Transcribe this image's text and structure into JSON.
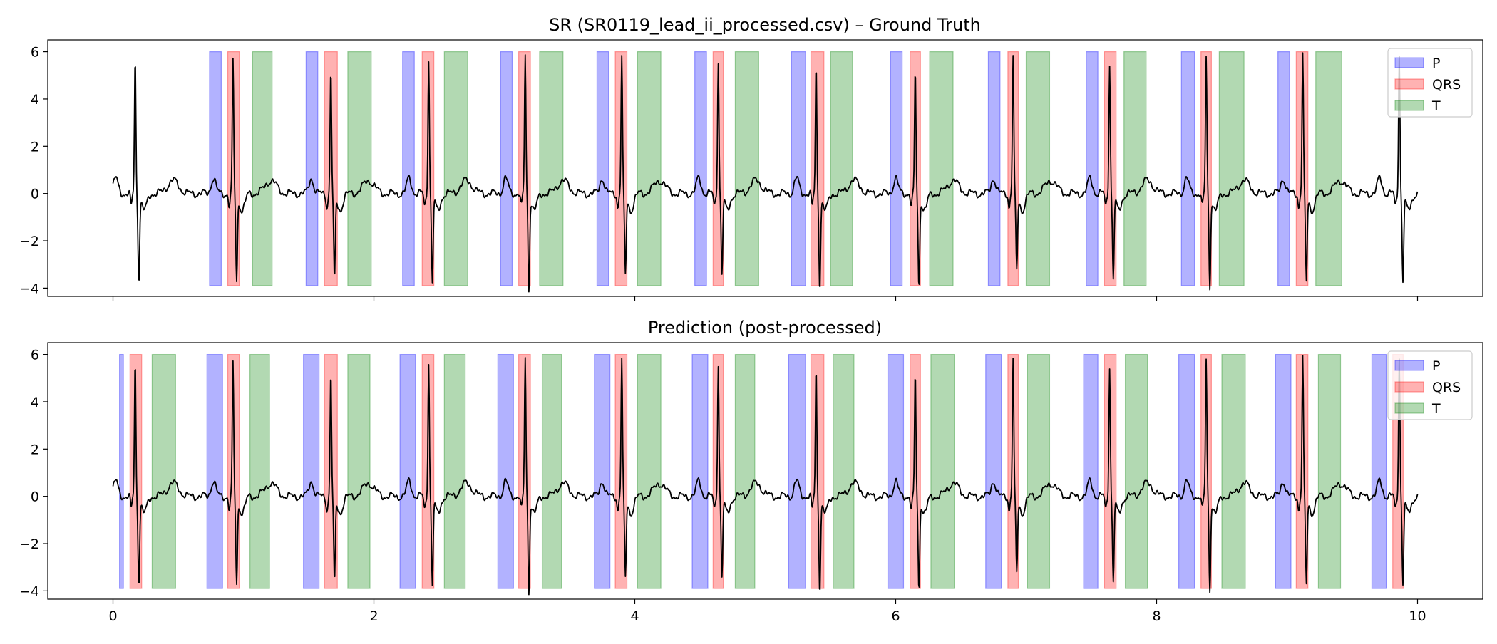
{
  "chart_data": [
    {
      "type": "line",
      "title": "SR (SR0119_lead_ii_processed.csv) – Ground Truth",
      "xlim": [
        -0.5,
        10.5
      ],
      "ylim": [
        -4.35,
        6.5
      ],
      "xticks": [
        0,
        2,
        4,
        6,
        8,
        10
      ],
      "yticks": [
        -4,
        -2,
        0,
        2,
        4,
        6
      ],
      "x_tick_labels_shown": false,
      "grid": false,
      "legend": {
        "placement": "top-right",
        "entries": [
          {
            "label": "P",
            "color": "#0000ff"
          },
          {
            "label": "QRS",
            "color": "#ff0000"
          },
          {
            "label": "T",
            "color": "#008000"
          }
        ]
      },
      "band_y_range": [
        -3.9,
        6.0
      ],
      "regions": {
        "P": [
          [
            0.74,
            0.83
          ],
          [
            1.48,
            1.57
          ],
          [
            2.22,
            2.31
          ],
          [
            2.97,
            3.06
          ],
          [
            3.71,
            3.8
          ],
          [
            4.46,
            4.55
          ],
          [
            5.2,
            5.31
          ],
          [
            5.96,
            6.05
          ],
          [
            6.71,
            6.8
          ],
          [
            7.46,
            7.55
          ],
          [
            8.19,
            8.29
          ],
          [
            8.93,
            9.02
          ]
        ],
        "QRS": [
          [
            0.88,
            0.97
          ],
          [
            1.62,
            1.72
          ],
          [
            2.37,
            2.46
          ],
          [
            3.11,
            3.2
          ],
          [
            3.85,
            3.94
          ],
          [
            4.6,
            4.68
          ],
          [
            5.35,
            5.45
          ],
          [
            6.11,
            6.19
          ],
          [
            6.86,
            6.94
          ],
          [
            7.6,
            7.69
          ],
          [
            8.34,
            8.42
          ],
          [
            9.07,
            9.16
          ]
        ],
        "T": [
          [
            1.07,
            1.22
          ],
          [
            1.8,
            1.98
          ],
          [
            2.54,
            2.72
          ],
          [
            3.27,
            3.45
          ],
          [
            4.02,
            4.2
          ],
          [
            4.77,
            4.95
          ],
          [
            5.5,
            5.67
          ],
          [
            6.26,
            6.44
          ],
          [
            7.0,
            7.18
          ],
          [
            7.75,
            7.92
          ],
          [
            8.48,
            8.67
          ],
          [
            9.22,
            9.42
          ]
        ]
      },
      "signal": {
        "name": "ECG lead II",
        "color": "#000000",
        "x_range": [
          0,
          10
        ],
        "qrs_peaks": [
          0.17,
          0.92,
          1.67,
          2.42,
          3.16,
          3.9,
          4.64,
          5.39,
          6.15,
          6.9,
          7.64,
          8.38,
          9.12,
          9.86
        ],
        "r_amplitudes": [
          5.7,
          5.6,
          5.3,
          5.7,
          5.9,
          5.8,
          5.6,
          5.4,
          5.2,
          5.8,
          5.5,
          5.8,
          5.9,
          5.9
        ],
        "s_amplitudes": [
          -3.6,
          -3.6,
          -3.6,
          -3.7,
          -3.9,
          -3.4,
          -3.3,
          -3.9,
          -3.9,
          -3.2,
          -3.5,
          -3.8,
          -3.7,
          -3.6
        ]
      }
    },
    {
      "type": "line",
      "title": "Prediction (post-processed)",
      "xlim": [
        -0.5,
        10.5
      ],
      "ylim": [
        -4.35,
        6.5
      ],
      "xticks": [
        0,
        2,
        4,
        6,
        8,
        10
      ],
      "yticks": [
        -4,
        -2,
        0,
        2,
        4,
        6
      ],
      "x_tick_labels_shown": true,
      "grid": false,
      "legend": {
        "placement": "top-right",
        "entries": [
          {
            "label": "P",
            "color": "#0000ff"
          },
          {
            "label": "QRS",
            "color": "#ff0000"
          },
          {
            "label": "T",
            "color": "#008000"
          }
        ]
      },
      "band_y_range": [
        -3.9,
        6.0
      ],
      "regions": {
        "P": [
          [
            0.05,
            0.08
          ],
          [
            0.72,
            0.84
          ],
          [
            1.46,
            1.58
          ],
          [
            2.2,
            2.32
          ],
          [
            2.95,
            3.07
          ],
          [
            3.69,
            3.81
          ],
          [
            4.44,
            4.56
          ],
          [
            5.18,
            5.31
          ],
          [
            5.94,
            6.06
          ],
          [
            6.69,
            6.81
          ],
          [
            7.44,
            7.55
          ],
          [
            8.17,
            8.29
          ],
          [
            8.91,
            9.03
          ],
          [
            9.65,
            9.76
          ]
        ],
        "QRS": [
          [
            0.13,
            0.22
          ],
          [
            0.88,
            0.97
          ],
          [
            1.62,
            1.72
          ],
          [
            2.37,
            2.46
          ],
          [
            3.11,
            3.2
          ],
          [
            3.85,
            3.94
          ],
          [
            4.6,
            4.68
          ],
          [
            5.35,
            5.45
          ],
          [
            6.11,
            6.19
          ],
          [
            6.86,
            6.94
          ],
          [
            7.6,
            7.69
          ],
          [
            8.34,
            8.42
          ],
          [
            9.07,
            9.16
          ],
          [
            9.81,
            9.89
          ]
        ],
        "T": [
          [
            0.3,
            0.48
          ],
          [
            1.05,
            1.2
          ],
          [
            1.8,
            1.97
          ],
          [
            2.54,
            2.7
          ],
          [
            3.29,
            3.44
          ],
          [
            4.02,
            4.2
          ],
          [
            4.77,
            4.92
          ],
          [
            5.52,
            5.68
          ],
          [
            6.27,
            6.45
          ],
          [
            7.01,
            7.18
          ],
          [
            7.76,
            7.93
          ],
          [
            8.5,
            8.68
          ],
          [
            9.24,
            9.41
          ]
        ]
      },
      "signal": {
        "name": "ECG lead II",
        "color": "#000000",
        "x_range": [
          0,
          10
        ],
        "qrs_peaks": [
          0.17,
          0.92,
          1.67,
          2.42,
          3.16,
          3.9,
          4.64,
          5.39,
          6.15,
          6.9,
          7.64,
          8.38,
          9.12,
          9.86
        ],
        "r_amplitudes": [
          5.7,
          5.6,
          5.3,
          5.7,
          5.9,
          5.8,
          5.6,
          5.4,
          5.2,
          5.8,
          5.5,
          5.8,
          5.9,
          5.9
        ],
        "s_amplitudes": [
          -3.6,
          -3.6,
          -3.6,
          -3.7,
          -3.9,
          -3.4,
          -3.3,
          -3.9,
          -3.9,
          -3.2,
          -3.5,
          -3.8,
          -3.7,
          -3.6
        ]
      }
    }
  ]
}
